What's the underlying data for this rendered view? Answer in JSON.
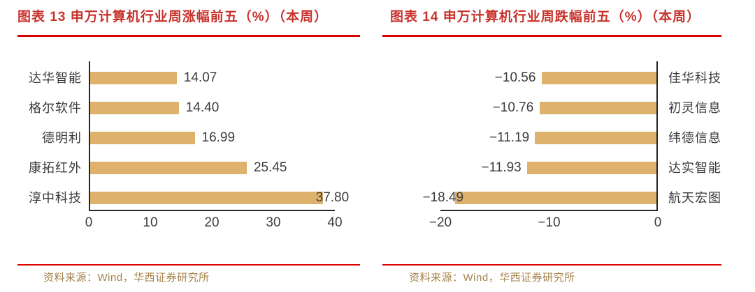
{
  "page": {
    "background": "#ffffff"
  },
  "colors": {
    "title_red": "#C8322B",
    "rule_red": "#D90000",
    "bar_gold": "#DEB26C",
    "source_gold": "#A5834B",
    "axis_dark": "#262626",
    "label_dark": "#3C3C3C"
  },
  "chart_data": [
    {
      "type": "bar",
      "orientation": "horizontal",
      "title": "图表 13 申万计算机行业周涨幅前五（%）（本周）",
      "source": "资料来源：Wind，华西证券研究所",
      "categories": [
        "达华智能",
        "格尔软件",
        "德明利",
        "康拓红外",
        "淳中科技"
      ],
      "values": [
        14.07,
        14.4,
        16.99,
        25.45,
        37.8
      ],
      "value_labels": [
        "14.07",
        "14.40",
        "16.99",
        "25.45",
        "37.80"
      ],
      "xlim": [
        0,
        40
      ],
      "xticks": [
        "0",
        "10",
        "20",
        "30",
        "40"
      ],
      "bar_color": "#DEB26C",
      "grid": false,
      "legend": false,
      "category_label_side": "left",
      "bar_anchor": "left"
    },
    {
      "type": "bar",
      "orientation": "horizontal",
      "title": "图表 14 申万计算机行业周跌幅前五（%）（本周）",
      "source": "资料来源：Wind，华西证券研究所",
      "categories": [
        "佳华科技",
        "初灵信息",
        "纬德信息",
        "达实智能",
        "航天宏图"
      ],
      "values": [
        -10.56,
        -10.76,
        -11.19,
        -11.93,
        -18.49
      ],
      "value_labels": [
        "−10.56",
        "−10.76",
        "−11.19",
        "−11.93",
        "−18.49"
      ],
      "xlim": [
        -20,
        0
      ],
      "xticks": [
        "−20",
        "−10",
        "0"
      ],
      "bar_color": "#DEB26C",
      "grid": false,
      "legend": false,
      "category_label_side": "right",
      "bar_anchor": "right"
    }
  ]
}
